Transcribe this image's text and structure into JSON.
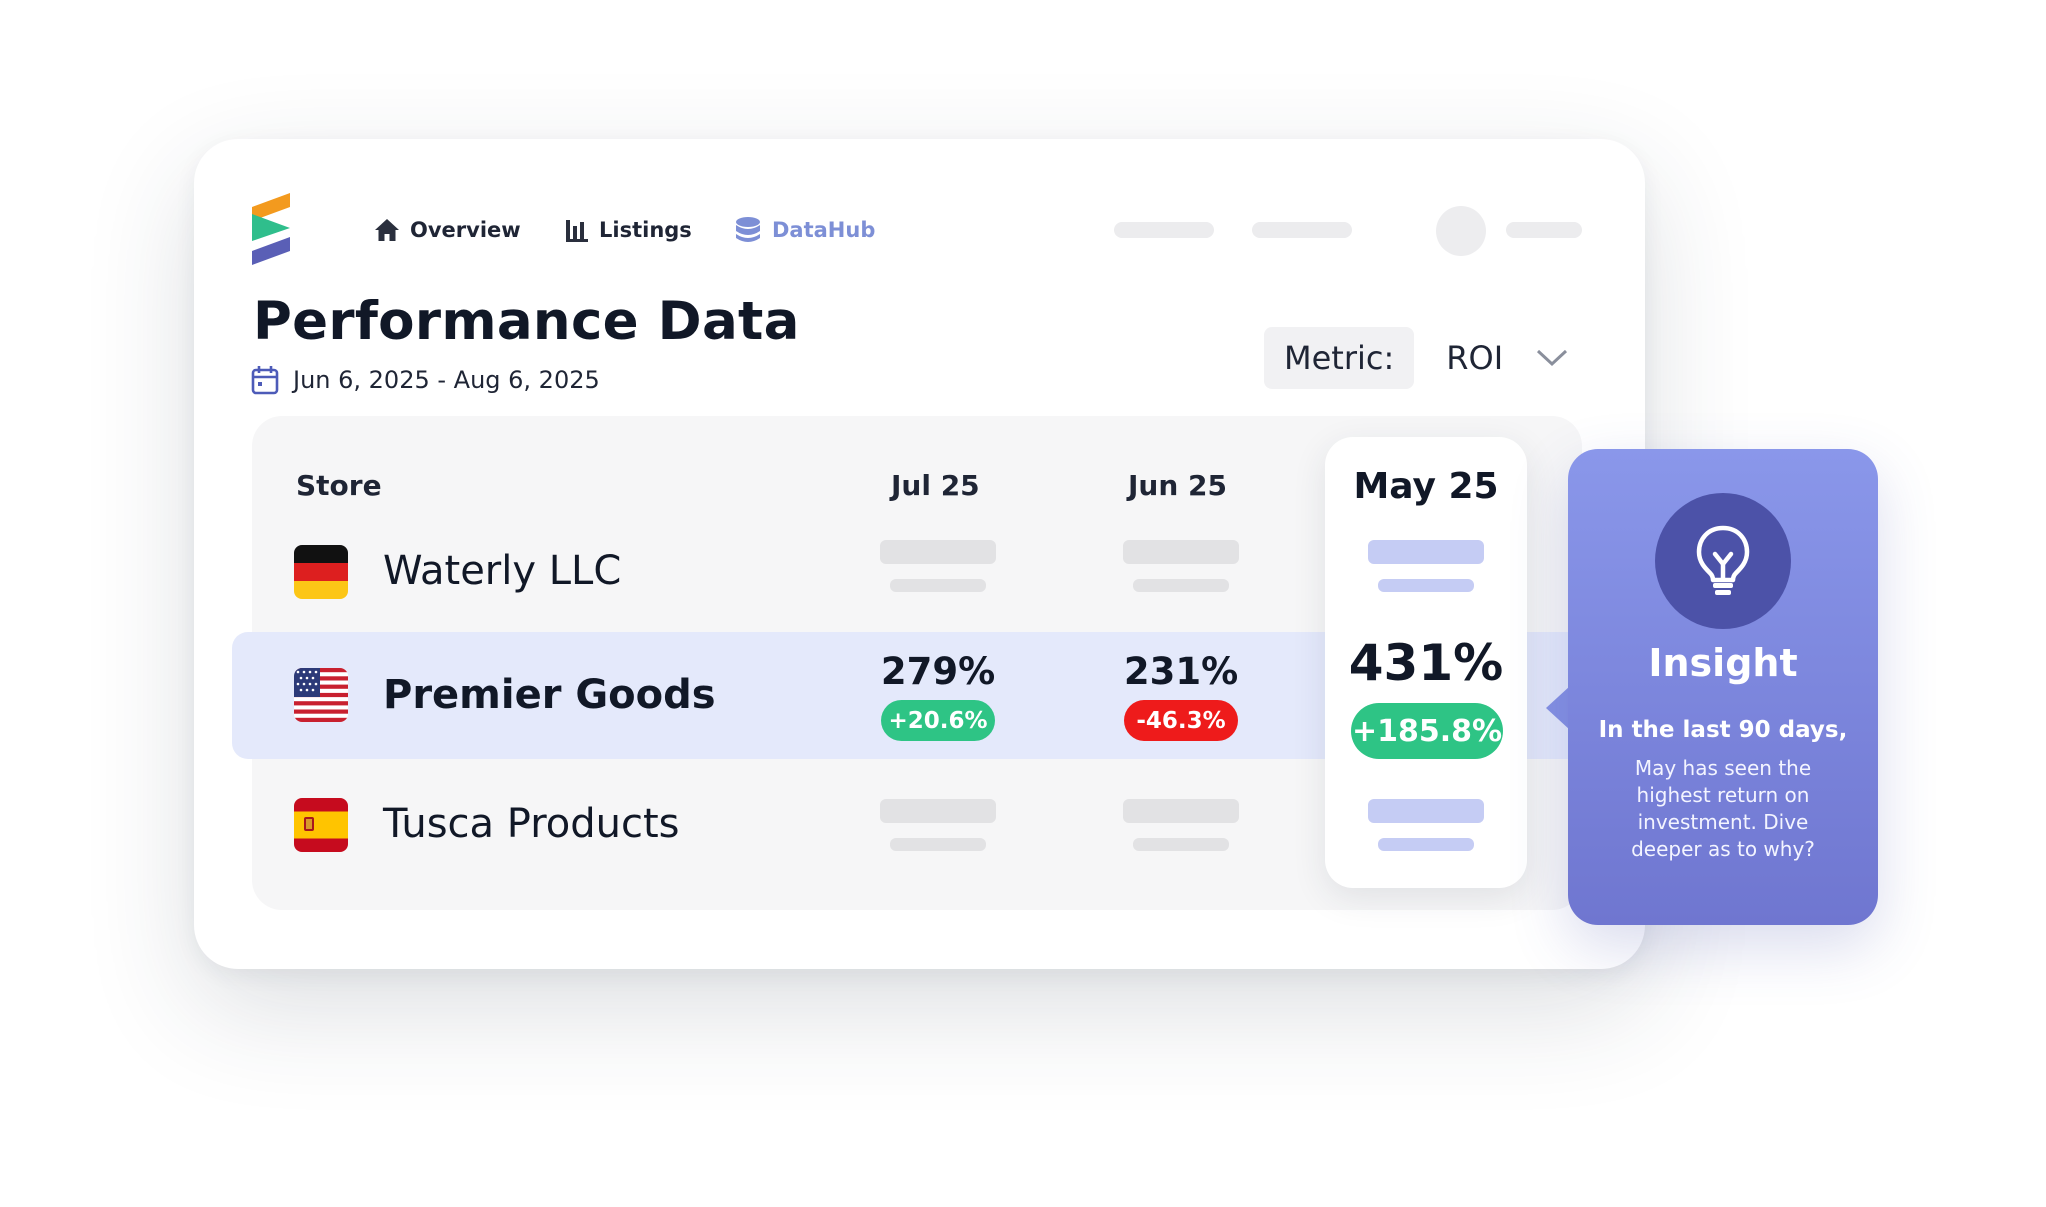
{
  "nav": {
    "items": [
      {
        "label": "Overview",
        "icon": "home-icon"
      },
      {
        "label": "Listings",
        "icon": "bar-chart-icon"
      },
      {
        "label": "DataHub",
        "icon": "database-icon"
      }
    ],
    "active_color": "#7d8fd6"
  },
  "page": {
    "title": "Performance Data",
    "date_range": "Jun 6, 2025 - Aug 6, 2025"
  },
  "metric": {
    "label": "Metric:",
    "value": "ROI"
  },
  "table": {
    "headers": {
      "store": "Store",
      "jul": "Jul 25",
      "jun": "Jun 25",
      "may": "May 25"
    },
    "rows": [
      {
        "store": "Waterly LLC",
        "flag": "germany-flag"
      },
      {
        "store": "Premier Goods",
        "flag": "usa-flag",
        "jul": {
          "value": "279%",
          "change": "+20.6%",
          "trend": "up"
        },
        "jun": {
          "value": "231%",
          "change": "-46.3%",
          "trend": "down"
        },
        "may": {
          "value": "431%",
          "change": "+185.8%",
          "trend": "up"
        }
      },
      {
        "store": "Tusca Products",
        "flag": "spain-flag"
      }
    ],
    "up_color": "#2ec485",
    "down_color": "#ee1b1b"
  },
  "insight": {
    "title": "Insight",
    "lead": "In the last 90 days,",
    "body": "May has seen the highest return on investment. Dive deeper as to why?",
    "icon": "lightbulb-icon"
  }
}
